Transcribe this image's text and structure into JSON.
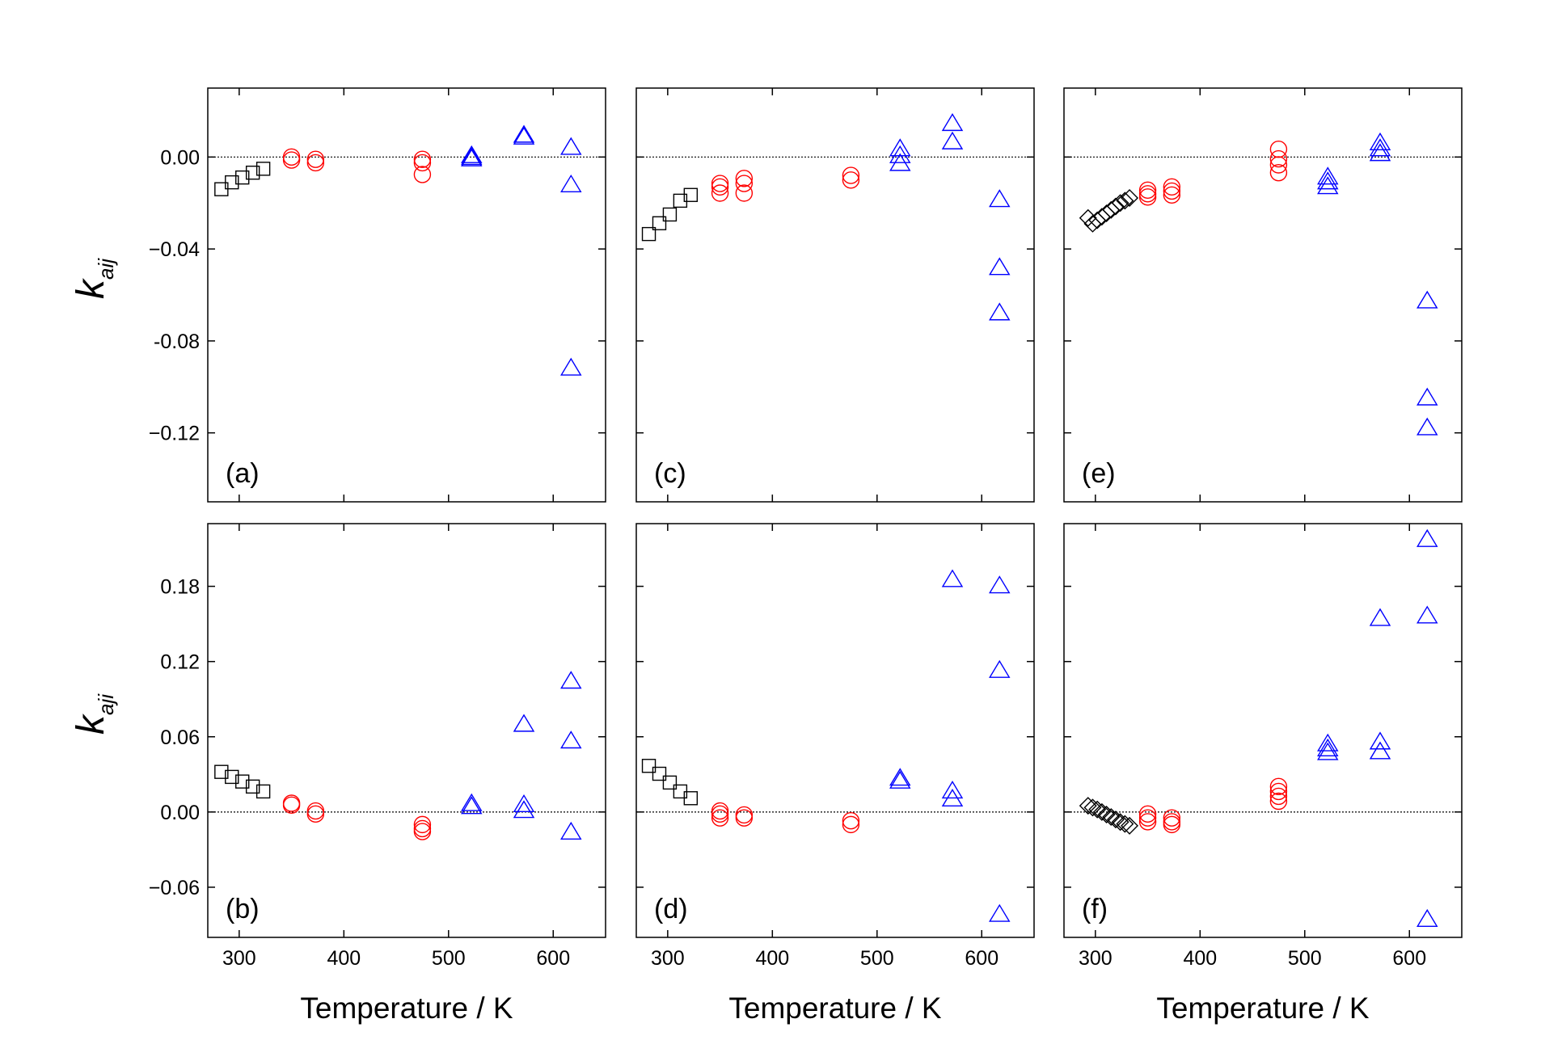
{
  "chart_data": [
    {
      "type": "scatter",
      "label": "(a)",
      "ylabel": "k",
      "ylabel_sub": "aij",
      "xlim": [
        270,
        650
      ],
      "ylim": [
        -0.15,
        0.03
      ],
      "xticks": [
        300,
        400,
        500,
        600
      ],
      "xtick_labels": false,
      "ytick_labels": true,
      "zero_line": true,
      "yticks": [
        {
          "value": 0,
          "label": "0.00"
        },
        {
          "value": -0.04,
          "label": "−0.04"
        },
        {
          "value": -0.08,
          "label": "-0.08"
        },
        {
          "value": -0.12,
          "label": "−0.12"
        }
      ],
      "series": [
        {
          "color": "#000000",
          "marker": "square",
          "x": [
            283,
            293,
            303,
            313,
            323
          ],
          "values": [
            -0.014,
            -0.011,
            -0.0089,
            -0.0068,
            -0.0051
          ]
        },
        {
          "color": "#ff0000",
          "marker": "circle",
          "x": [
            350,
            350,
            373,
            373,
            475,
            475,
            475
          ],
          "values": [
            0,
            -0.0013,
            -0.001,
            -0.0025,
            -0.001,
            -0.0025,
            -0.0076
          ]
        },
        {
          "color": "#0000ff",
          "marker": "triangle",
          "x": [
            522,
            522,
            522,
            572,
            572,
            617,
            617,
            617
          ],
          "values": [
            0.0004,
            -0.0004,
            -0.001,
            0.0093,
            0.0085,
            0.004,
            -0.0123,
            -0.092
          ]
        }
      ]
    },
    {
      "type": "scatter",
      "label": "(b)",
      "ylabel": "k",
      "ylabel_sub": "aji",
      "xlabel": "Temperature / K",
      "xlim": [
        270,
        650
      ],
      "ylim": [
        -0.1,
        0.23
      ],
      "xticks": [
        300,
        400,
        500,
        600
      ],
      "xtick_labels": true,
      "ytick_labels": true,
      "zero_line": true,
      "yticks": [
        {
          "value": -0.06,
          "label": "−0.06"
        },
        {
          "value": 0,
          "label": "0.00"
        },
        {
          "value": 0.06,
          "label": "0.06"
        },
        {
          "value": 0.12,
          "label": "0.12"
        },
        {
          "value": 0.18,
          "label": "0.18"
        }
      ],
      "series": [
        {
          "color": "#000000",
          "marker": "square",
          "x": [
            283,
            293,
            303,
            313,
            323
          ],
          "values": [
            0.032,
            0.028,
            0.0243,
            0.0203,
            0.0164
          ]
        },
        {
          "color": "#ff0000",
          "marker": "circle",
          "x": [
            350,
            350,
            373,
            373,
            475,
            475,
            475
          ],
          "values": [
            0.007,
            0.0055,
            0.0008,
            -0.0016,
            -0.01,
            -0.0133,
            -0.0156
          ]
        },
        {
          "color": "#0000ff",
          "marker": "triangle",
          "x": [
            522,
            522,
            572,
            572,
            572,
            617,
            617,
            617
          ],
          "values": [
            0.0063,
            0.004,
            0.0696,
            0.0055,
            0.0008,
            0.104,
            0.0563,
            -0.0164
          ]
        }
      ]
    },
    {
      "type": "scatter",
      "label": "(c)",
      "xlim": [
        270,
        650
      ],
      "ylim": [
        -0.15,
        0.03
      ],
      "xticks": [
        300,
        400,
        500,
        600
      ],
      "xtick_labels": false,
      "ytick_labels": false,
      "zero_line": true,
      "yticks": [
        {
          "value": 0,
          "label": "0.00"
        },
        {
          "value": -0.04,
          "label": "−0.04"
        },
        {
          "value": -0.08,
          "label": "-0.08"
        },
        {
          "value": -0.12,
          "label": "−0.12"
        }
      ],
      "series": [
        {
          "color": "#000000",
          "marker": "square",
          "x": [
            282,
            292,
            302,
            312,
            322
          ],
          "values": [
            -0.0335,
            -0.0288,
            -0.025,
            -0.019,
            -0.0165
          ]
        },
        {
          "color": "#ff0000",
          "marker": "circle",
          "x": [
            350,
            350,
            350,
            373,
            373,
            373,
            475,
            475
          ],
          "values": [
            -0.0115,
            -0.013,
            -0.0157,
            -0.0093,
            -0.0115,
            -0.0157,
            -0.008,
            -0.01
          ]
        },
        {
          "color": "#0000ff",
          "marker": "triangle",
          "x": [
            522,
            522,
            522,
            572,
            572,
            617,
            617,
            617
          ],
          "values": [
            0.0034,
            0.0004,
            -0.003,
            0.0144,
            0.0064,
            -0.0187,
            -0.0483,
            -0.068
          ]
        }
      ]
    },
    {
      "type": "scatter",
      "label": "(d)",
      "xlabel": "Temperature / K",
      "xlim": [
        270,
        650
      ],
      "ylim": [
        -0.1,
        0.23
      ],
      "xticks": [
        300,
        400,
        500,
        600
      ],
      "xtick_labels": true,
      "ytick_labels": false,
      "zero_line": true,
      "yticks": [
        {
          "value": -0.06,
          "label": "−0.06"
        },
        {
          "value": 0,
          "label": "0.00"
        },
        {
          "value": 0.06,
          "label": "0.06"
        },
        {
          "value": 0.12,
          "label": "0.12"
        },
        {
          "value": 0.18,
          "label": "0.18"
        }
      ],
      "series": [
        {
          "color": "#000000",
          "marker": "square",
          "x": [
            282,
            292,
            302,
            312,
            322
          ],
          "values": [
            0.0368,
            0.0305,
            0.0235,
            0.0164,
            0.011
          ]
        },
        {
          "color": "#ff0000",
          "marker": "circle",
          "x": [
            350,
            350,
            350,
            373,
            373,
            475,
            475
          ],
          "values": [
            0.0008,
            -0.0016,
            -0.0047,
            -0.0023,
            -0.0047,
            -0.007,
            -0.01
          ]
        },
        {
          "color": "#0000ff",
          "marker": "triangle",
          "x": [
            522,
            522,
            572,
            572,
            572,
            617,
            617,
            617
          ],
          "values": [
            0.0266,
            0.0243,
            0.185,
            0.0164,
            0.01,
            0.18,
            0.1126,
            -0.082
          ]
        }
      ]
    },
    {
      "type": "scatter",
      "label": "(e)",
      "xlim": [
        270,
        650
      ],
      "ylim": [
        -0.15,
        0.03
      ],
      "xticks": [
        300,
        400,
        500,
        600
      ],
      "xtick_labels": false,
      "ytick_labels": false,
      "zero_line": true,
      "yticks": [
        {
          "value": 0,
          "label": "0.00"
        },
        {
          "value": -0.04,
          "label": "−0.04"
        },
        {
          "value": -0.08,
          "label": "-0.08"
        },
        {
          "value": -0.12,
          "label": "−0.12"
        }
      ],
      "series": [
        {
          "color": "#000000",
          "marker": "diamond",
          "x": [
            293,
            297.4,
            301.8,
            306.2,
            310.6,
            315,
            319.4,
            323.8,
            328.2,
            332.6
          ],
          "values": [
            -0.0265,
            -0.029,
            -0.0275,
            -0.026,
            -0.0245,
            -0.023,
            -0.0215,
            -0.02,
            -0.019,
            -0.0178
          ]
        },
        {
          "color": "#ff0000",
          "marker": "circle",
          "x": [
            350,
            350,
            350,
            373,
            373,
            373,
            475,
            475,
            475,
            475
          ],
          "values": [
            -0.0144,
            -0.016,
            -0.0174,
            -0.013,
            -0.0148,
            -0.0165,
            0.0034,
            -0.0008,
            -0.0034,
            -0.0068
          ]
        },
        {
          "color": "#0000ff",
          "marker": "triangle",
          "x": [
            522,
            522,
            522,
            572,
            572,
            572,
            617,
            617,
            617
          ],
          "values": [
            -0.0089,
            -0.011,
            -0.0131,
            0.006,
            0.0034,
            0.0013,
            -0.0628,
            -0.105,
            -0.118
          ]
        }
      ]
    },
    {
      "type": "scatter",
      "label": "(f)",
      "xlabel": "Temperature / K",
      "xlim": [
        270,
        650
      ],
      "ylim": [
        -0.1,
        0.23
      ],
      "xticks": [
        300,
        400,
        500,
        600
      ],
      "xtick_labels": true,
      "ytick_labels": false,
      "zero_line": true,
      "yticks": [
        {
          "value": -0.06,
          "label": "−0.06"
        },
        {
          "value": 0,
          "label": "0.00"
        },
        {
          "value": 0.06,
          "label": "0.06"
        },
        {
          "value": 0.12,
          "label": "0.12"
        },
        {
          "value": 0.18,
          "label": "0.18"
        }
      ],
      "series": [
        {
          "color": "#000000",
          "marker": "diamond",
          "x": [
            293,
            297.4,
            301.8,
            306.2,
            310.6,
            315,
            319.4,
            323.8,
            328.2,
            332.6
          ],
          "values": [
            0.005,
            0.0035,
            0.002,
            0,
            -0.002,
            -0.004,
            -0.006,
            -0.008,
            -0.0095,
            -0.011
          ]
        },
        {
          "color": "#ff0000",
          "marker": "circle",
          "x": [
            350,
            350,
            350,
            373,
            373,
            373,
            475,
            475,
            475,
            475
          ],
          "values": [
            -0.0016,
            -0.0047,
            -0.0078,
            -0.0047,
            -0.0078,
            -0.01,
            0.0203,
            0.0164,
            0.0125,
            0.0086
          ]
        },
        {
          "color": "#0000ff",
          "marker": "triangle",
          "x": [
            522,
            522,
            522,
            572,
            572,
            572,
            617,
            617,
            617
          ],
          "values": [
            0.054,
            0.05,
            0.047,
            0.154,
            0.0555,
            0.0477,
            0.217,
            0.156,
            -0.086
          ]
        }
      ]
    }
  ]
}
